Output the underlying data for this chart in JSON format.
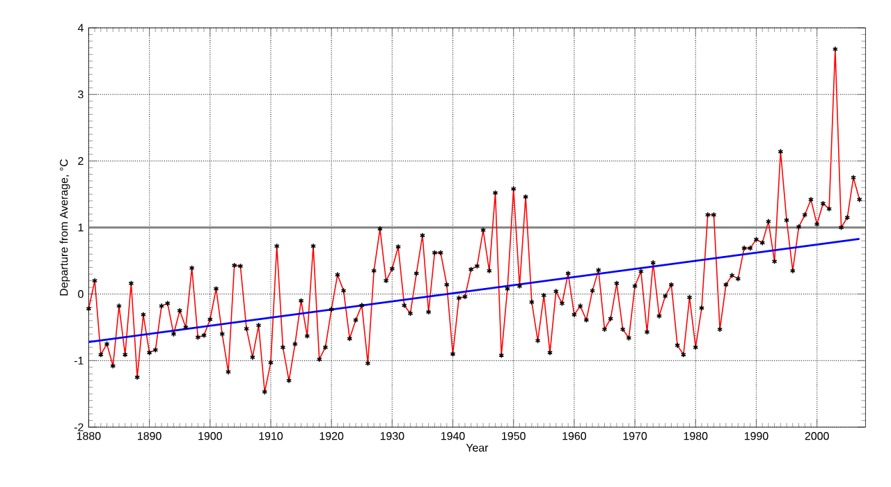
{
  "chart_data": {
    "type": "line",
    "xlabel": "Year",
    "ylabel": "Departure from Average, °C",
    "xlim": [
      1880,
      2008
    ],
    "ylim": [
      -2,
      4
    ],
    "xticks": [
      1880,
      1890,
      1900,
      1910,
      1920,
      1930,
      1940,
      1950,
      1960,
      1970,
      1980,
      1990,
      2000
    ],
    "yticks": [
      -2,
      -1,
      0,
      1,
      2,
      3,
      4
    ],
    "grid": true,
    "ref_lines": [
      {
        "axis": "y",
        "value": 1,
        "color": "#808080"
      }
    ],
    "x": [
      1880,
      1881,
      1882,
      1883,
      1884,
      1885,
      1886,
      1887,
      1888,
      1889,
      1890,
      1891,
      1892,
      1893,
      1894,
      1895,
      1896,
      1897,
      1898,
      1899,
      1900,
      1901,
      1902,
      1903,
      1904,
      1905,
      1906,
      1907,
      1908,
      1909,
      1910,
      1911,
      1912,
      1913,
      1914,
      1915,
      1916,
      1917,
      1918,
      1919,
      1920,
      1921,
      1922,
      1923,
      1924,
      1925,
      1926,
      1927,
      1928,
      1929,
      1930,
      1931,
      1932,
      1933,
      1934,
      1935,
      1936,
      1937,
      1938,
      1939,
      1940,
      1941,
      1942,
      1943,
      1944,
      1945,
      1946,
      1947,
      1948,
      1949,
      1950,
      1951,
      1952,
      1953,
      1954,
      1955,
      1956,
      1957,
      1958,
      1959,
      1960,
      1961,
      1962,
      1963,
      1964,
      1965,
      1966,
      1967,
      1968,
      1969,
      1970,
      1971,
      1972,
      1973,
      1974,
      1975,
      1976,
      1977,
      1978,
      1979,
      1980,
      1981,
      1982,
      1983,
      1984,
      1985,
      1986,
      1987,
      1988,
      1989,
      1990,
      1991,
      1992,
      1993,
      1994,
      1995,
      1996,
      1997,
      1998,
      1999,
      2000,
      2001,
      2002,
      2003,
      2004,
      2005,
      2006,
      2007
    ],
    "series": [
      {
        "color": "#ff0000",
        "marker": "cross",
        "values": [
          -0.22,
          0.2,
          -0.91,
          -0.75,
          -1.08,
          -0.18,
          -0.91,
          0.16,
          -1.25,
          -0.31,
          -0.88,
          -0.84,
          -0.18,
          -0.14,
          -0.6,
          -0.25,
          -0.5,
          0.39,
          -0.65,
          -0.62,
          -0.38,
          0.08,
          -0.6,
          -1.17,
          0.43,
          0.42,
          -0.52,
          -0.95,
          -0.47,
          -1.47,
          -1.03,
          0.72,
          -0.8,
          -1.3,
          -0.75,
          -0.1,
          -0.63,
          0.72,
          -0.98,
          -0.8,
          -0.23,
          0.29,
          0.05,
          -0.67,
          -0.39,
          -0.17,
          -1.04,
          0.35,
          0.98,
          0.2,
          0.38,
          0.71,
          -0.17,
          -0.29,
          0.31,
          0.88,
          -0.27,
          0.62,
          0.62,
          0.14,
          -0.9,
          -0.06,
          -0.04,
          0.37,
          0.42,
          0.96,
          0.35,
          1.52,
          -0.92,
          0.08,
          1.58,
          0.12,
          1.46,
          -0.12,
          -0.7,
          -0.02,
          -0.88,
          0.04,
          -0.14,
          0.31,
          -0.31,
          -0.18,
          -0.39,
          0.05,
          0.36,
          -0.53,
          -0.37,
          0.16,
          -0.53,
          -0.66,
          0.12,
          0.34,
          -0.57,
          0.47,
          -0.33,
          -0.03,
          0.14,
          -0.77,
          -0.91,
          -0.05,
          -0.8,
          -0.21,
          1.19,
          1.19,
          -0.53,
          0.14,
          0.28,
          0.23,
          0.69,
          0.69,
          0.82,
          0.77,
          1.09,
          0.49,
          2.14,
          1.11,
          0.35,
          1.01,
          1.19,
          1.42,
          1.05,
          1.36,
          1.28,
          3.68,
          1.0,
          1.15,
          1.75,
          1.42
        ]
      },
      {
        "color": "#0000ff",
        "x": [
          1880,
          2007
        ],
        "values": [
          -0.72,
          0.83
        ]
      }
    ]
  }
}
